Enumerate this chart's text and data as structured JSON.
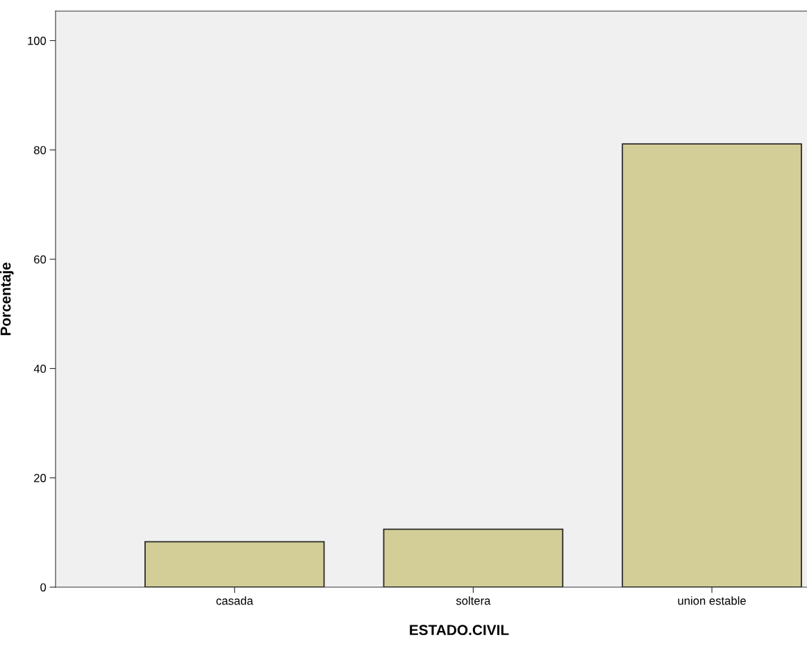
{
  "chart_data": {
    "type": "bar",
    "xlabel": "ESTADO.CIVIL",
    "ylabel": "Porcentaje",
    "categories": [
      "casada",
      "soltera",
      "union estable"
    ],
    "values": [
      8.3,
      10.6,
      81.1
    ],
    "color": "#d3ce97",
    "ylim": [
      0,
      105.4
    ],
    "yticks": [
      0,
      20,
      40,
      60,
      80,
      100
    ],
    "grid": false
  }
}
